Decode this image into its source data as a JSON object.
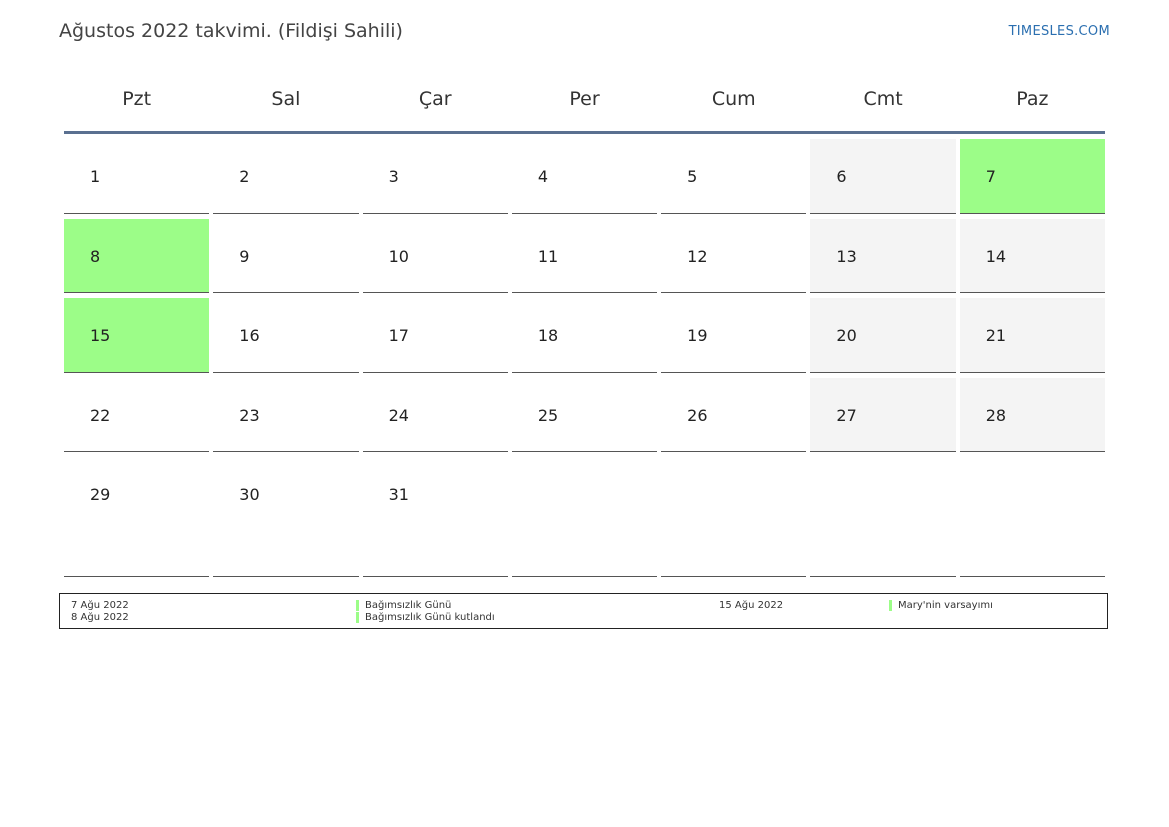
{
  "header": {
    "title": "Ağustos 2022 takvimi. (Fildişi Sahili)",
    "brand": "TIMESLES.COM"
  },
  "colors": {
    "holiday": "#9cfd88",
    "weekend": "#f4f4f4",
    "brand": "#2b6fb0",
    "header_rule": "#5a7090"
  },
  "weekdays": [
    "Pzt",
    "Sal",
    "Çar",
    "Per",
    "Cum",
    "Cmt",
    "Paz"
  ],
  "weeks": [
    [
      {
        "day": "1"
      },
      {
        "day": "2"
      },
      {
        "day": "3"
      },
      {
        "day": "4"
      },
      {
        "day": "5"
      },
      {
        "day": "6",
        "weekend": true
      },
      {
        "day": "7",
        "holiday": true
      }
    ],
    [
      {
        "day": "8",
        "holiday": true
      },
      {
        "day": "9"
      },
      {
        "day": "10"
      },
      {
        "day": "11"
      },
      {
        "day": "12"
      },
      {
        "day": "13",
        "weekend": true
      },
      {
        "day": "14",
        "weekend": true
      }
    ],
    [
      {
        "day": "15",
        "holiday": true
      },
      {
        "day": "16"
      },
      {
        "day": "17"
      },
      {
        "day": "18"
      },
      {
        "day": "19"
      },
      {
        "day": "20",
        "weekend": true
      },
      {
        "day": "21",
        "weekend": true
      }
    ],
    [
      {
        "day": "22"
      },
      {
        "day": "23"
      },
      {
        "day": "24"
      },
      {
        "day": "25"
      },
      {
        "day": "26"
      },
      {
        "day": "27",
        "weekend": true
      },
      {
        "day": "28",
        "weekend": true
      }
    ],
    [
      {
        "day": "29"
      },
      {
        "day": "30"
      },
      {
        "day": "31"
      },
      {
        "day": ""
      },
      {
        "day": ""
      },
      {
        "day": ""
      },
      {
        "day": ""
      }
    ]
  ],
  "holidays": [
    {
      "date": "7 Ağu 2022",
      "name": "Bağımsızlık Günü"
    },
    {
      "date": "8 Ağu 2022",
      "name": "Bağımsızlık Günü kutlandı"
    },
    {
      "date": "15 Ağu 2022",
      "name": "Mary'nin varsayımı"
    }
  ]
}
